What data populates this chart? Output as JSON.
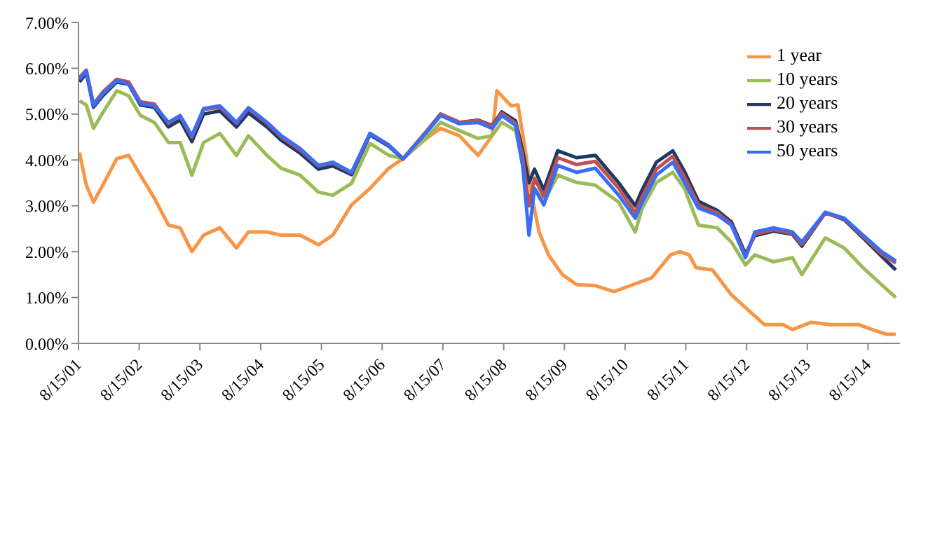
{
  "chart_data": {
    "type": "line",
    "x": [
      "2001-08-21",
      "2001-10-01",
      "2001-11-13",
      "2002-01-08",
      "2002-04-02",
      "2002-06-13",
      "2002-08-22",
      "2002-11-14",
      "2003-02-07",
      "2003-04-18",
      "2003-06-28",
      "2003-09-06",
      "2003-12-13",
      "2004-03-22",
      "2004-06-02",
      "2004-09-22",
      "2004-12-16",
      "2005-04-08",
      "2005-07-28",
      "2005-10-22",
      "2006-02-12",
      "2006-06-03",
      "2006-09-24",
      "2006-12-19",
      "2007-05-08",
      "2007-08-01",
      "2007-11-22",
      "2008-03-14",
      "2008-06-07",
      "2008-08-03",
      "2008-10-26",
      "2008-12-07",
      "2009-01-14",
      "2009-02-16",
      "2009-04-13",
      "2009-07-06",
      "2009-10-27",
      "2010-02-17",
      "2010-07-08",
      "2010-10-15",
      "2010-11-26",
      "2011-02-19",
      "2011-05-29",
      "2011-08-07",
      "2011-10-30",
      "2012-02-20",
      "2012-05-15",
      "2012-08-08",
      "2012-10-03",
      "2013-01-24",
      "2013-05-17",
      "2013-07-13",
      "2013-12-01",
      "2014-03-25",
      "2014-07-16",
      "2014-11-05",
      "2015-01-29"
    ],
    "series": [
      {
        "name": "1 year",
        "color": "#f79646",
        "x": [
          "2001-08-21",
          "2001-10-01",
          "2001-11-13",
          "2002-01-08",
          "2002-04-02",
          "2002-06-13",
          "2002-08-22",
          "2002-11-14",
          "2003-02-07",
          "2003-04-18",
          "2003-06-28",
          "2003-09-06",
          "2003-12-13",
          "2004-03-22",
          "2004-06-02",
          "2004-09-22",
          "2004-12-16",
          "2005-04-08",
          "2005-07-28",
          "2005-10-22",
          "2006-02-12",
          "2006-06-03",
          "2006-09-24",
          "2006-12-19",
          "2007-05-08",
          "2007-08-01",
          "2007-11-22",
          "2008-03-14",
          "2008-06-07",
          "2008-07-05",
          "2008-09-28",
          "2008-11-09",
          "2008-12-21",
          "2009-02-02",
          "2009-03-16",
          "2009-05-11",
          "2009-08-03",
          "2009-10-27",
          "2010-02-17",
          "2010-06-10",
          "2010-10-01",
          "2011-01-22",
          "2011-05-15",
          "2011-07-10",
          "2011-09-04",
          "2011-10-16",
          "2012-01-23",
          "2012-05-15",
          "2012-09-05",
          "2012-11-29",
          "2013-03-22",
          "2013-05-17",
          "2013-09-07",
          "2014-01-01",
          "2014-06-18",
          "2014-09-09",
          "2014-12-02",
          "2015-01-29"
        ],
        "values": [
          4.16,
          3.45,
          3.08,
          3.45,
          4.03,
          4.1,
          3.67,
          3.17,
          2.58,
          2.52,
          2.0,
          2.36,
          2.52,
          2.08,
          2.43,
          2.43,
          2.36,
          2.36,
          2.15,
          2.36,
          3.02,
          3.38,
          3.82,
          4.03,
          4.47,
          4.69,
          4.53,
          4.1,
          4.53,
          5.51,
          5.18,
          5.2,
          4.25,
          3.17,
          2.43,
          1.93,
          1.5,
          1.28,
          1.26,
          1.13,
          1.28,
          1.43,
          1.93,
          2.0,
          1.93,
          1.65,
          1.6,
          1.06,
          0.69,
          0.41,
          0.41,
          0.3,
          0.46,
          0.41,
          0.41,
          0.3,
          0.2,
          0.2
        ]
      },
      {
        "name": "10 years",
        "color": "#9bbb59",
        "values": [
          5.29,
          5.2,
          4.69,
          5.03,
          5.51,
          5.4,
          4.97,
          4.82,
          4.38,
          4.38,
          3.67,
          4.38,
          4.58,
          4.1,
          4.53,
          4.1,
          3.82,
          3.67,
          3.3,
          3.23,
          3.49,
          4.36,
          4.1,
          4.03,
          4.49,
          4.82,
          4.64,
          4.47,
          4.53,
          4.82,
          4.64,
          3.88,
          3.08,
          3.38,
          3.08,
          3.67,
          3.51,
          3.45,
          3.08,
          2.43,
          2.95,
          3.51,
          3.73,
          3.38,
          2.58,
          2.52,
          2.21,
          1.71,
          1.93,
          1.78,
          1.87,
          1.5,
          2.3,
          2.08,
          1.65,
          1.28,
          1.0
        ]
      },
      {
        "name": "20 years",
        "color": "#1f3864",
        "values": [
          5.7,
          5.9,
          5.15,
          5.4,
          5.7,
          5.65,
          5.2,
          5.15,
          4.72,
          4.87,
          4.4,
          5.0,
          5.07,
          4.72,
          5.03,
          4.72,
          4.43,
          4.15,
          3.8,
          3.87,
          3.68,
          4.55,
          4.3,
          4.02,
          4.62,
          5.0,
          4.82,
          4.87,
          4.75,
          5.05,
          4.85,
          4.2,
          3.5,
          3.8,
          3.35,
          4.2,
          4.05,
          4.1,
          3.5,
          3.0,
          3.35,
          3.95,
          4.2,
          3.75,
          3.1,
          2.9,
          2.65,
          1.95,
          2.35,
          2.45,
          2.38,
          2.12,
          2.85,
          2.7,
          2.3,
          1.9,
          1.6
        ]
      },
      {
        "name": "30 years",
        "color": "#c0504d",
        "values": [
          5.8,
          5.96,
          5.22,
          5.48,
          5.76,
          5.7,
          5.27,
          5.22,
          4.8,
          4.95,
          4.5,
          5.1,
          5.15,
          4.8,
          5.12,
          4.8,
          4.5,
          4.22,
          3.87,
          3.93,
          3.72,
          4.58,
          4.33,
          4.03,
          4.62,
          5.0,
          4.82,
          4.86,
          4.73,
          5.02,
          4.8,
          4.05,
          3.0,
          3.6,
          3.2,
          4.05,
          3.9,
          3.97,
          3.38,
          2.85,
          3.2,
          3.8,
          4.08,
          3.63,
          3.02,
          2.85,
          2.6,
          1.9,
          2.38,
          2.48,
          2.4,
          2.16,
          2.84,
          2.72,
          2.33,
          1.95,
          1.75
        ]
      },
      {
        "name": "50 years",
        "color": "#3b6cf5",
        "values": [
          5.76,
          5.94,
          5.18,
          5.44,
          5.73,
          5.66,
          5.23,
          5.18,
          4.82,
          4.97,
          4.53,
          5.12,
          5.18,
          4.82,
          5.14,
          4.82,
          4.53,
          4.25,
          3.88,
          3.95,
          3.73,
          4.58,
          4.32,
          4.03,
          4.6,
          4.97,
          4.79,
          4.82,
          4.69,
          4.97,
          4.75,
          3.88,
          2.36,
          3.38,
          3.02,
          3.88,
          3.73,
          3.82,
          3.23,
          2.73,
          3.08,
          3.67,
          3.95,
          3.51,
          2.95,
          2.8,
          2.58,
          1.87,
          2.43,
          2.52,
          2.43,
          2.21,
          2.86,
          2.73,
          2.36,
          2.0,
          1.8
        ]
      }
    ],
    "xlim": [
      "2001-08-15",
      "2015-02-23"
    ],
    "xticks": [
      {
        "value": "2001-08-15",
        "label": "8/15/01"
      },
      {
        "value": "2002-08-15",
        "label": "8/15/02"
      },
      {
        "value": "2003-08-15",
        "label": "8/15/03"
      },
      {
        "value": "2004-08-15",
        "label": "8/15/04"
      },
      {
        "value": "2005-08-15",
        "label": "8/15/05"
      },
      {
        "value": "2006-08-15",
        "label": "8/15/06"
      },
      {
        "value": "2007-08-15",
        "label": "8/15/07"
      },
      {
        "value": "2008-08-15",
        "label": "8/15/08"
      },
      {
        "value": "2009-08-15",
        "label": "8/15/09"
      },
      {
        "value": "2010-08-15",
        "label": "8/15/10"
      },
      {
        "value": "2011-08-15",
        "label": "8/15/11"
      },
      {
        "value": "2012-08-15",
        "label": "8/15/12"
      },
      {
        "value": "2013-08-15",
        "label": "8/15/13"
      },
      {
        "value": "2014-08-15",
        "label": "8/15/14"
      }
    ],
    "ylim": [
      0,
      7
    ],
    "yticks": [
      {
        "value": 0,
        "label": "0.00%"
      },
      {
        "value": 1,
        "label": "1.00%"
      },
      {
        "value": 2,
        "label": "2.00%"
      },
      {
        "value": 3,
        "label": "3.00%"
      },
      {
        "value": 4,
        "label": "4.00%"
      },
      {
        "value": 5,
        "label": "5.00%"
      },
      {
        "value": 6,
        "label": "6.00%"
      },
      {
        "value": 7,
        "label": "7.00%"
      }
    ],
    "legend": "top right",
    "marker": "none",
    "line_style": "solid"
  }
}
